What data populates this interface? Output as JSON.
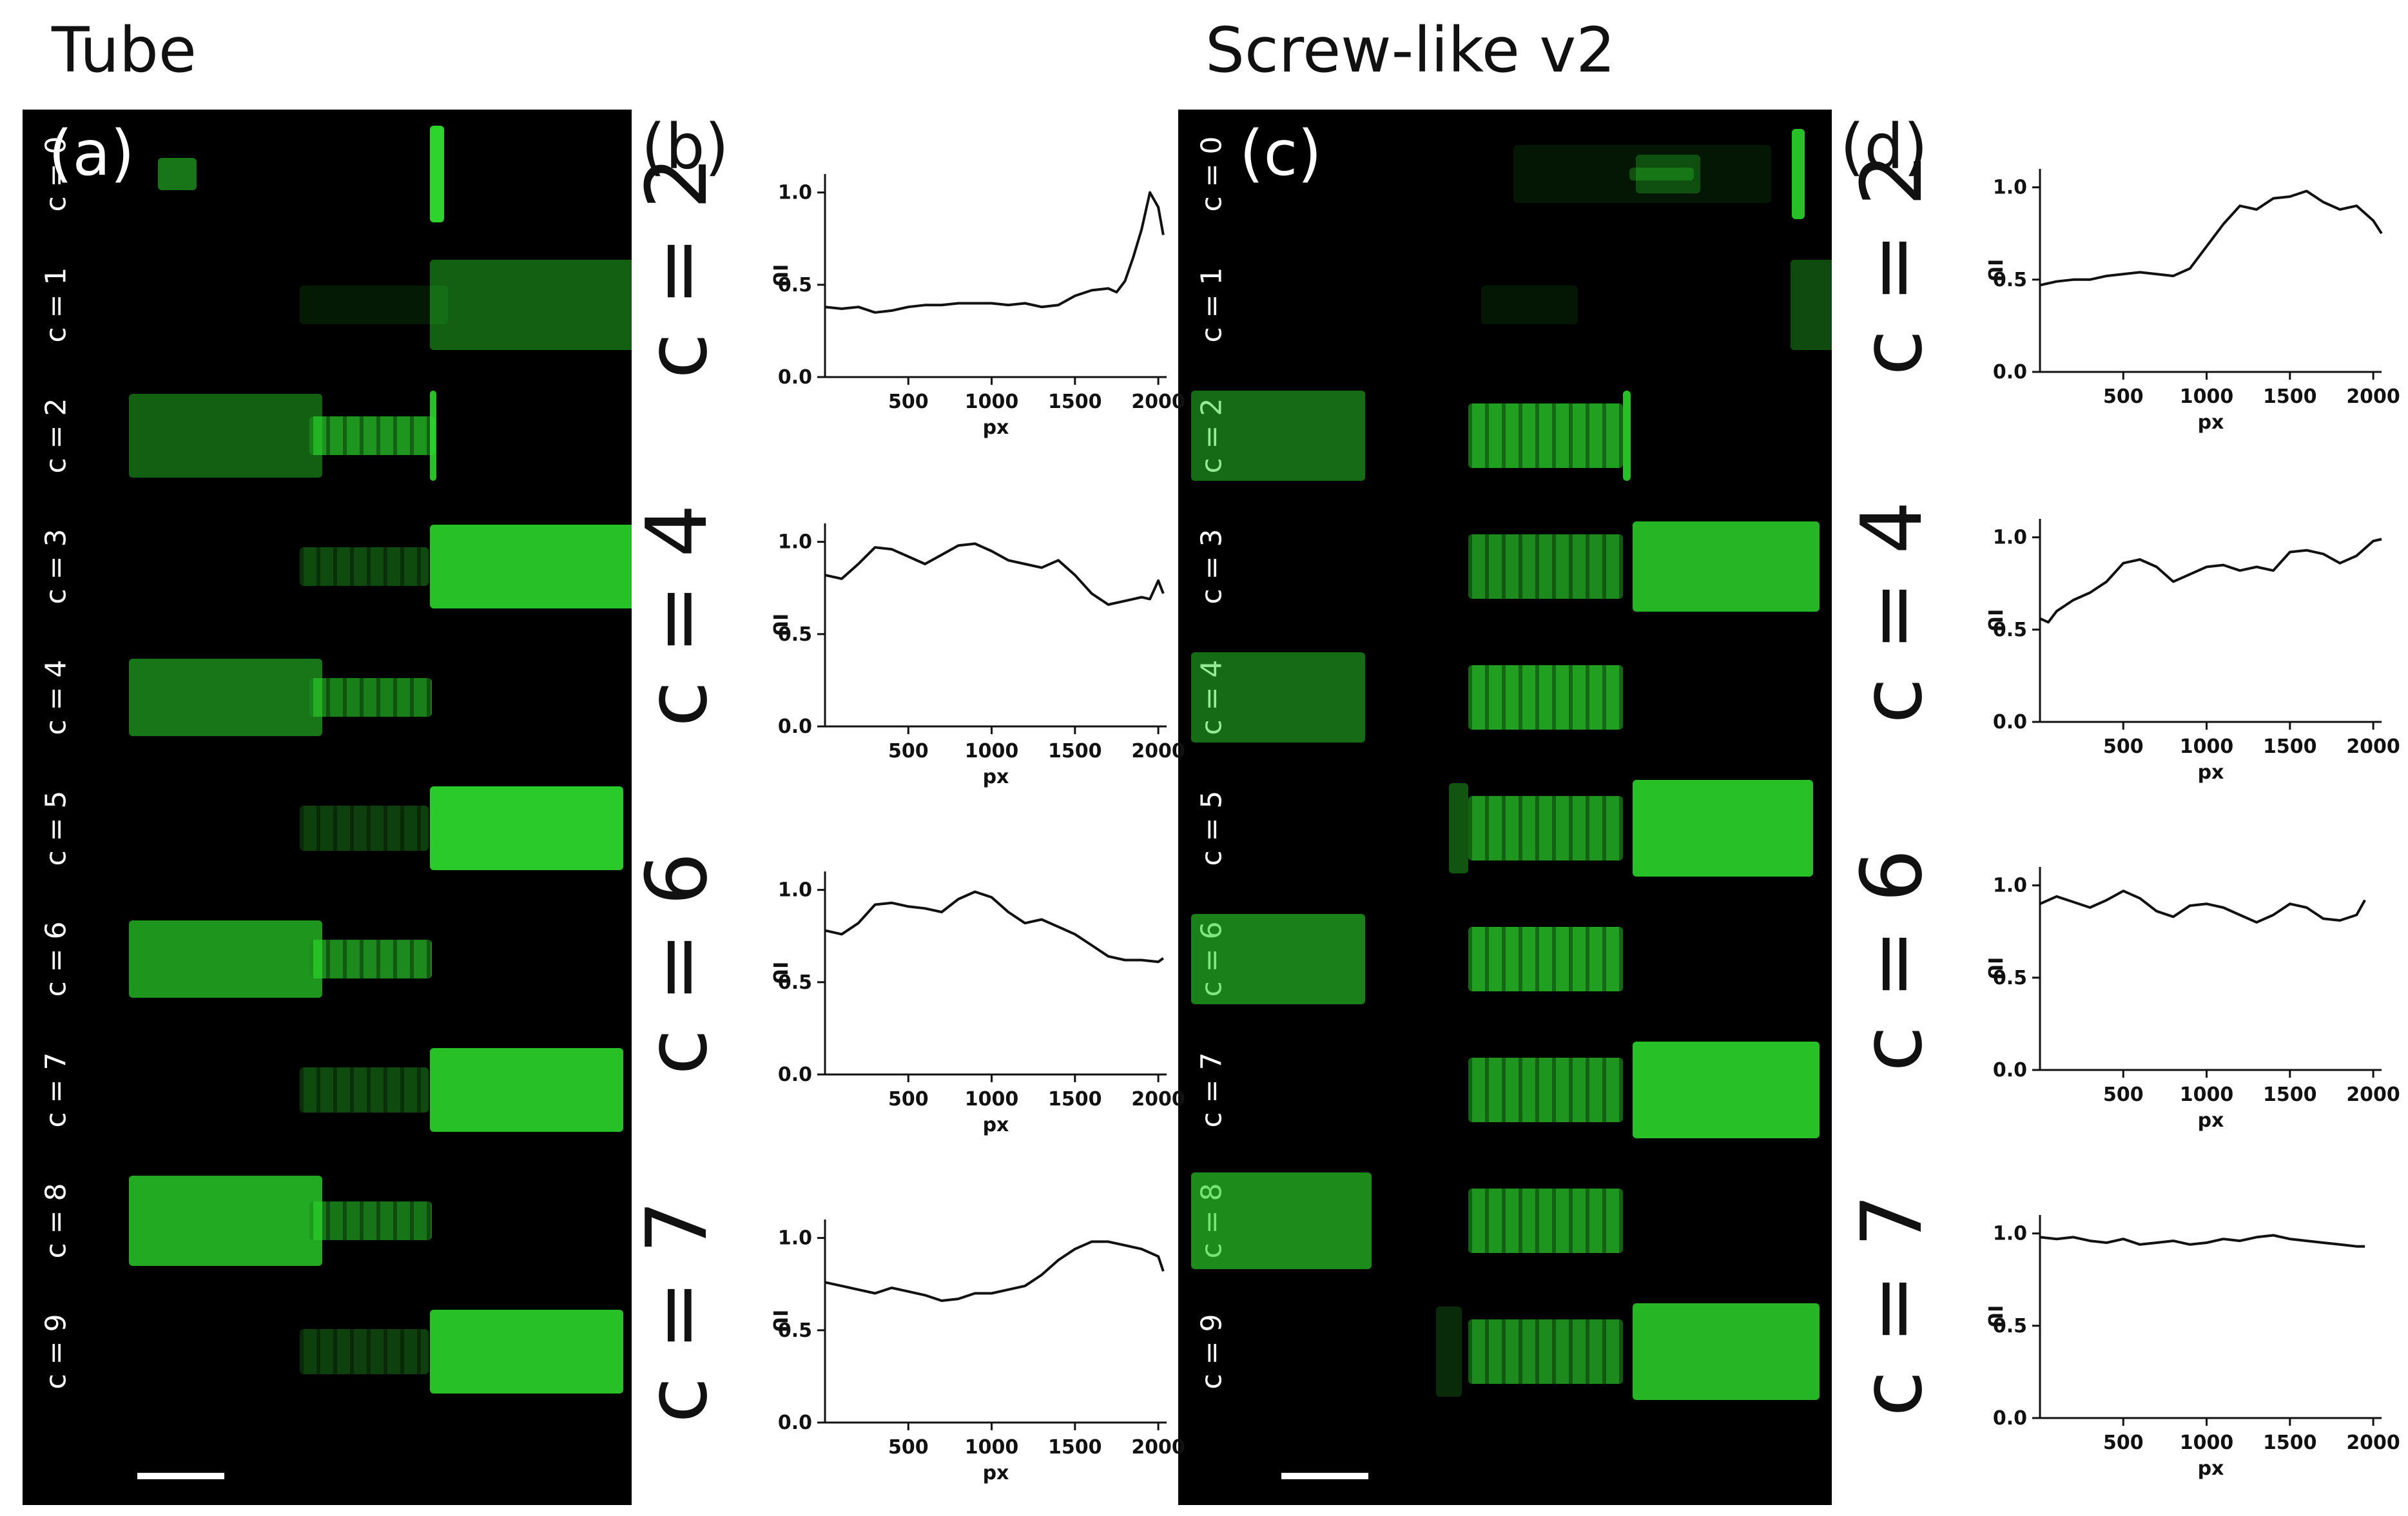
{
  "titles": {
    "left": "Tube",
    "right": "Screw-like v2"
  },
  "panels": {
    "a": {
      "letter": "(a)",
      "rows": [
        "c = 0",
        "c = 1",
        "c = 2",
        "c = 3",
        "c = 4",
        "c = 5",
        "c = 6",
        "c = 7",
        "c = 8",
        "c = 9"
      ]
    },
    "b": {
      "letter": "(b)"
    },
    "c": {
      "letter": "(c)",
      "rows": [
        "c = 0",
        "c = 1",
        "c = 2",
        "c = 3",
        "c = 4",
        "c = 5",
        "c = 6",
        "c = 7",
        "c = 8",
        "c = 9"
      ]
    },
    "d": {
      "letter": "(d)"
    }
  },
  "colors": {
    "fluorescence": "#2bd52b",
    "background": "#000000"
  },
  "chart_data": [
    {
      "type": "line",
      "panel": "b",
      "label": "c = 2",
      "xlabel": "px",
      "ylabel": "IU",
      "xlim": [
        0,
        2050
      ],
      "ylim": [
        0,
        1.1
      ],
      "xticks": [
        "500",
        "1000",
        "1500",
        "2000"
      ],
      "yticks": [
        "0.0",
        "0.5",
        "1.0"
      ],
      "x": [
        0,
        100,
        200,
        300,
        400,
        500,
        600,
        700,
        800,
        900,
        1000,
        1100,
        1200,
        1300,
        1400,
        1500,
        1600,
        1700,
        1750,
        1800,
        1850,
        1900,
        1950,
        2000,
        2030
      ],
      "y": [
        0.38,
        0.37,
        0.38,
        0.35,
        0.36,
        0.38,
        0.39,
        0.39,
        0.4,
        0.4,
        0.4,
        0.39,
        0.4,
        0.38,
        0.39,
        0.44,
        0.47,
        0.48,
        0.46,
        0.52,
        0.65,
        0.8,
        1.0,
        0.92,
        0.77
      ]
    },
    {
      "type": "line",
      "panel": "b",
      "label": "c = 4",
      "xlabel": "px",
      "ylabel": "IU",
      "xlim": [
        0,
        2050
      ],
      "ylim": [
        0,
        1.1
      ],
      "xticks": [
        "500",
        "1000",
        "1500",
        "2000"
      ],
      "yticks": [
        "0.0",
        "0.5",
        "1.0"
      ],
      "x": [
        0,
        100,
        200,
        300,
        400,
        500,
        600,
        700,
        800,
        900,
        1000,
        1100,
        1200,
        1300,
        1400,
        1500,
        1600,
        1700,
        1800,
        1900,
        1950,
        2000,
        2030
      ],
      "y": [
        0.82,
        0.8,
        0.88,
        0.97,
        0.96,
        0.92,
        0.88,
        0.93,
        0.98,
        0.99,
        0.95,
        0.9,
        0.88,
        0.86,
        0.9,
        0.82,
        0.72,
        0.66,
        0.68,
        0.7,
        0.69,
        0.79,
        0.72
      ]
    },
    {
      "type": "line",
      "panel": "b",
      "label": "c = 6",
      "xlabel": "px",
      "ylabel": "IU",
      "xlim": [
        0,
        2050
      ],
      "ylim": [
        0,
        1.1
      ],
      "xticks": [
        "500",
        "1000",
        "1500",
        "2000"
      ],
      "yticks": [
        "0.0",
        "0.5",
        "1.0"
      ],
      "x": [
        0,
        100,
        200,
        300,
        400,
        500,
        600,
        700,
        800,
        900,
        1000,
        1100,
        1200,
        1300,
        1400,
        1500,
        1600,
        1700,
        1800,
        1900,
        2000,
        2030
      ],
      "y": [
        0.78,
        0.76,
        0.82,
        0.92,
        0.93,
        0.91,
        0.9,
        0.88,
        0.95,
        0.99,
        0.96,
        0.88,
        0.82,
        0.84,
        0.8,
        0.76,
        0.7,
        0.64,
        0.62,
        0.62,
        0.61,
        0.63
      ]
    },
    {
      "type": "line",
      "panel": "b",
      "label": "c = 7",
      "xlabel": "px",
      "ylabel": "IU",
      "xlim": [
        0,
        2050
      ],
      "ylim": [
        0,
        1.1
      ],
      "xticks": [
        "500",
        "1000",
        "1500",
        "2000"
      ],
      "yticks": [
        "0.0",
        "0.5",
        "1.0"
      ],
      "x": [
        0,
        100,
        200,
        300,
        400,
        500,
        600,
        700,
        800,
        900,
        1000,
        1100,
        1200,
        1300,
        1400,
        1500,
        1600,
        1700,
        1800,
        1900,
        2000,
        2030
      ],
      "y": [
        0.76,
        0.74,
        0.72,
        0.7,
        0.73,
        0.71,
        0.69,
        0.66,
        0.67,
        0.7,
        0.7,
        0.72,
        0.74,
        0.8,
        0.88,
        0.94,
        0.98,
        0.98,
        0.96,
        0.94,
        0.9,
        0.82
      ]
    },
    {
      "type": "line",
      "panel": "d",
      "label": "c = 2",
      "xlabel": "px",
      "ylabel": "IU",
      "xlim": [
        0,
        2050
      ],
      "ylim": [
        0,
        1.1
      ],
      "xticks": [
        "500",
        "1000",
        "1500",
        "2000"
      ],
      "yticks": [
        "0.0",
        "0.5",
        "1.0"
      ],
      "x": [
        0,
        100,
        200,
        300,
        400,
        500,
        600,
        700,
        800,
        900,
        1000,
        1100,
        1200,
        1300,
        1400,
        1500,
        1600,
        1700,
        1800,
        1900,
        2000,
        2050
      ],
      "y": [
        0.47,
        0.49,
        0.5,
        0.5,
        0.52,
        0.53,
        0.54,
        0.53,
        0.52,
        0.56,
        0.68,
        0.8,
        0.9,
        0.88,
        0.94,
        0.95,
        0.98,
        0.92,
        0.88,
        0.9,
        0.82,
        0.75
      ]
    },
    {
      "type": "line",
      "panel": "d",
      "label": "c = 4",
      "xlabel": "px",
      "ylabel": "IU",
      "xlim": [
        0,
        2050
      ],
      "ylim": [
        0,
        1.1
      ],
      "xticks": [
        "500",
        "1000",
        "1500",
        "2000"
      ],
      "yticks": [
        "0.0",
        "0.5",
        "1.0"
      ],
      "x": [
        0,
        50,
        100,
        200,
        300,
        400,
        500,
        600,
        700,
        800,
        900,
        1000,
        1100,
        1200,
        1300,
        1400,
        1500,
        1600,
        1700,
        1800,
        1900,
        2000,
        2050
      ],
      "y": [
        0.56,
        0.54,
        0.6,
        0.66,
        0.7,
        0.76,
        0.86,
        0.88,
        0.84,
        0.76,
        0.8,
        0.84,
        0.85,
        0.82,
        0.84,
        0.82,
        0.92,
        0.93,
        0.91,
        0.86,
        0.9,
        0.98,
        0.99
      ]
    },
    {
      "type": "line",
      "panel": "d",
      "label": "c = 6",
      "xlabel": "px",
      "ylabel": "IU",
      "xlim": [
        0,
        2050
      ],
      "ylim": [
        0,
        1.1
      ],
      "xticks": [
        "500",
        "1000",
        "1500",
        "2000"
      ],
      "yticks": [
        "0.0",
        "0.5",
        "1.0"
      ],
      "x": [
        0,
        100,
        200,
        300,
        400,
        500,
        600,
        700,
        800,
        900,
        1000,
        1100,
        1200,
        1300,
        1400,
        1500,
        1600,
        1700,
        1800,
        1900,
        1950
      ],
      "y": [
        0.9,
        0.94,
        0.91,
        0.88,
        0.92,
        0.97,
        0.93,
        0.86,
        0.83,
        0.89,
        0.9,
        0.88,
        0.84,
        0.8,
        0.84,
        0.9,
        0.88,
        0.82,
        0.81,
        0.84,
        0.92
      ]
    },
    {
      "type": "line",
      "panel": "d",
      "label": "c = 7",
      "xlabel": "px",
      "ylabel": "IU",
      "xlim": [
        0,
        2050
      ],
      "ylim": [
        0,
        1.1
      ],
      "xticks": [
        "500",
        "1000",
        "1500",
        "2000"
      ],
      "yticks": [
        "0.0",
        "0.5",
        "1.0"
      ],
      "x": [
        0,
        100,
        200,
        300,
        400,
        500,
        600,
        700,
        800,
        900,
        1000,
        1100,
        1200,
        1300,
        1400,
        1500,
        1600,
        1700,
        1800,
        1900,
        1950
      ],
      "y": [
        0.98,
        0.97,
        0.98,
        0.96,
        0.95,
        0.97,
        0.94,
        0.95,
        0.96,
        0.94,
        0.95,
        0.97,
        0.96,
        0.98,
        0.99,
        0.97,
        0.96,
        0.95,
        0.94,
        0.93,
        0.93
      ]
    }
  ]
}
